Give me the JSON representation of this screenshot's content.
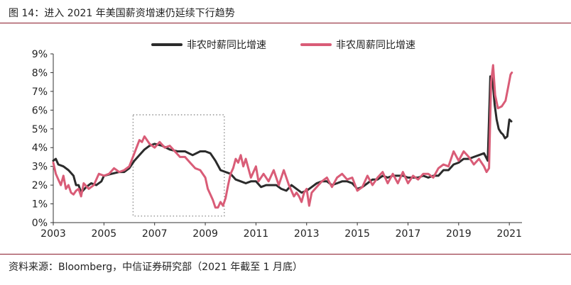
{
  "figure": {
    "title": "图 14：进入 2021 年美国薪资增速仍延续下行趋势",
    "source": "资料来源：Bloomberg，中信证券研究部（2021 年截至 1 月底）"
  },
  "chart_data": {
    "type": "line",
    "title": "",
    "xlabel": "",
    "ylabel": "",
    "xlim": [
      2003,
      2021.5
    ],
    "ylim": [
      0,
      9
    ],
    "x_ticks": [
      "2003",
      "2005",
      "2007",
      "2009",
      "2011",
      "2013",
      "2015",
      "2017",
      "2019",
      "2021"
    ],
    "y_ticks": [
      "0%",
      "1%",
      "2%",
      "3%",
      "4%",
      "5%",
      "6%",
      "7%",
      "8%",
      "9%"
    ],
    "grid": false,
    "legend_position": "top-center",
    "annotation_box": {
      "x": [
        2006.15,
        2009.75
      ],
      "y": [
        0.35,
        5.75
      ],
      "style": "dotted"
    },
    "series": [
      {
        "name": "非农时薪同比增速",
        "color": "#2b2b2b",
        "points": [
          [
            2003.0,
            3.3
          ],
          [
            2003.1,
            3.4
          ],
          [
            2003.2,
            3.1
          ],
          [
            2003.4,
            3.0
          ],
          [
            2003.6,
            2.8
          ],
          [
            2003.8,
            2.5
          ],
          [
            2003.9,
            2.0
          ],
          [
            2004.0,
            2.0
          ],
          [
            2004.1,
            1.6
          ],
          [
            2004.3,
            1.9
          ],
          [
            2004.5,
            2.1
          ],
          [
            2004.7,
            2.0
          ],
          [
            2004.9,
            2.2
          ],
          [
            2005.0,
            2.5
          ],
          [
            2005.3,
            2.6
          ],
          [
            2005.6,
            2.7
          ],
          [
            2005.8,
            2.7
          ],
          [
            2006.0,
            2.9
          ],
          [
            2006.2,
            3.3
          ],
          [
            2006.4,
            3.6
          ],
          [
            2006.6,
            3.9
          ],
          [
            2006.8,
            4.1
          ],
          [
            2007.0,
            4.2
          ],
          [
            2007.3,
            4.1
          ],
          [
            2007.6,
            3.9
          ],
          [
            2007.9,
            3.8
          ],
          [
            2008.2,
            3.8
          ],
          [
            2008.5,
            3.6
          ],
          [
            2008.8,
            3.8
          ],
          [
            2009.0,
            3.8
          ],
          [
            2009.2,
            3.7
          ],
          [
            2009.4,
            3.3
          ],
          [
            2009.6,
            2.8
          ],
          [
            2009.8,
            2.7
          ],
          [
            2010.0,
            2.6
          ],
          [
            2010.2,
            2.3
          ],
          [
            2010.4,
            2.2
          ],
          [
            2010.6,
            2.1
          ],
          [
            2010.8,
            2.2
          ],
          [
            2011.0,
            2.2
          ],
          [
            2011.2,
            1.9
          ],
          [
            2011.4,
            2.0
          ],
          [
            2011.6,
            2.0
          ],
          [
            2011.8,
            2.0
          ],
          [
            2012.0,
            1.8
          ],
          [
            2012.2,
            1.7
          ],
          [
            2012.4,
            2.0
          ],
          [
            2012.6,
            1.8
          ],
          [
            2012.8,
            1.6
          ],
          [
            2013.0,
            1.7
          ],
          [
            2013.2,
            1.9
          ],
          [
            2013.4,
            2.1
          ],
          [
            2013.6,
            2.2
          ],
          [
            2013.8,
            2.2
          ],
          [
            2014.0,
            2.0
          ],
          [
            2014.2,
            2.1
          ],
          [
            2014.4,
            2.2
          ],
          [
            2014.6,
            2.2
          ],
          [
            2014.8,
            2.1
          ],
          [
            2015.0,
            1.8
          ],
          [
            2015.2,
            1.9
          ],
          [
            2015.4,
            2.1
          ],
          [
            2015.6,
            2.3
          ],
          [
            2015.8,
            2.3
          ],
          [
            2016.0,
            2.5
          ],
          [
            2016.2,
            2.4
          ],
          [
            2016.4,
            2.5
          ],
          [
            2016.6,
            2.5
          ],
          [
            2016.8,
            2.5
          ],
          [
            2017.0,
            2.4
          ],
          [
            2017.2,
            2.4
          ],
          [
            2017.4,
            2.4
          ],
          [
            2017.6,
            2.5
          ],
          [
            2017.8,
            2.4
          ],
          [
            2018.0,
            2.5
          ],
          [
            2018.2,
            2.5
          ],
          [
            2018.4,
            2.8
          ],
          [
            2018.6,
            2.8
          ],
          [
            2018.8,
            3.1
          ],
          [
            2019.0,
            3.2
          ],
          [
            2019.2,
            3.4
          ],
          [
            2019.4,
            3.4
          ],
          [
            2019.6,
            3.5
          ],
          [
            2019.8,
            3.6
          ],
          [
            2020.0,
            3.7
          ],
          [
            2020.15,
            3.3
          ],
          [
            2020.25,
            7.8
          ],
          [
            2020.33,
            7.7
          ],
          [
            2020.42,
            6.3
          ],
          [
            2020.5,
            5.5
          ],
          [
            2020.58,
            5.0
          ],
          [
            2020.67,
            4.8
          ],
          [
            2020.75,
            4.7
          ],
          [
            2020.83,
            4.5
          ],
          [
            2020.92,
            4.6
          ],
          [
            2021.0,
            5.5
          ],
          [
            2021.08,
            5.4
          ]
        ]
      },
      {
        "name": "非农周薪同比增速",
        "color": "#d95c77",
        "points": [
          [
            2003.0,
            3.2
          ],
          [
            2003.1,
            2.6
          ],
          [
            2003.2,
            2.3
          ],
          [
            2003.3,
            2.0
          ],
          [
            2003.4,
            2.5
          ],
          [
            2003.5,
            1.8
          ],
          [
            2003.6,
            2.0
          ],
          [
            2003.7,
            1.6
          ],
          [
            2003.8,
            1.5
          ],
          [
            2003.9,
            1.7
          ],
          [
            2004.0,
            1.8
          ],
          [
            2004.1,
            1.4
          ],
          [
            2004.2,
            2.1
          ],
          [
            2004.4,
            1.8
          ],
          [
            2004.6,
            2.0
          ],
          [
            2004.8,
            2.6
          ],
          [
            2005.0,
            2.5
          ],
          [
            2005.2,
            2.6
          ],
          [
            2005.4,
            2.9
          ],
          [
            2005.6,
            2.7
          ],
          [
            2005.8,
            2.8
          ],
          [
            2006.0,
            3.0
          ],
          [
            2006.2,
            3.7
          ],
          [
            2006.4,
            4.4
          ],
          [
            2006.5,
            4.3
          ],
          [
            2006.6,
            4.6
          ],
          [
            2006.8,
            4.2
          ],
          [
            2007.0,
            4.0
          ],
          [
            2007.2,
            4.3
          ],
          [
            2007.4,
            4.0
          ],
          [
            2007.6,
            4.1
          ],
          [
            2007.8,
            3.8
          ],
          [
            2008.0,
            3.5
          ],
          [
            2008.2,
            3.5
          ],
          [
            2008.4,
            3.2
          ],
          [
            2008.6,
            2.9
          ],
          [
            2008.8,
            2.8
          ],
          [
            2009.0,
            2.4
          ],
          [
            2009.1,
            1.8
          ],
          [
            2009.2,
            1.5
          ],
          [
            2009.3,
            1.2
          ],
          [
            2009.4,
            0.8
          ],
          [
            2009.5,
            0.8
          ],
          [
            2009.6,
            1.1
          ],
          [
            2009.7,
            0.9
          ],
          [
            2009.8,
            1.3
          ],
          [
            2009.9,
            2.0
          ],
          [
            2010.0,
            2.6
          ],
          [
            2010.1,
            2.9
          ],
          [
            2010.2,
            3.4
          ],
          [
            2010.3,
            3.2
          ],
          [
            2010.4,
            3.6
          ],
          [
            2010.5,
            3.0
          ],
          [
            2010.6,
            3.4
          ],
          [
            2010.8,
            2.4
          ],
          [
            2011.0,
            3.0
          ],
          [
            2011.1,
            2.2
          ],
          [
            2011.3,
            2.6
          ],
          [
            2011.5,
            2.2
          ],
          [
            2011.7,
            2.8
          ],
          [
            2011.9,
            2.0
          ],
          [
            2012.1,
            2.8
          ],
          [
            2012.3,
            2.0
          ],
          [
            2012.5,
            1.4
          ],
          [
            2012.6,
            1.6
          ],
          [
            2012.7,
            1.4
          ],
          [
            2012.8,
            1.1
          ],
          [
            2012.9,
            1.6
          ],
          [
            2013.0,
            1.8
          ],
          [
            2013.1,
            0.9
          ],
          [
            2013.2,
            1.6
          ],
          [
            2013.4,
            1.9
          ],
          [
            2013.6,
            2.2
          ],
          [
            2013.8,
            2.4
          ],
          [
            2014.0,
            1.9
          ],
          [
            2014.2,
            2.4
          ],
          [
            2014.4,
            2.6
          ],
          [
            2014.6,
            2.3
          ],
          [
            2014.8,
            2.4
          ],
          [
            2015.0,
            1.7
          ],
          [
            2015.2,
            1.9
          ],
          [
            2015.4,
            2.5
          ],
          [
            2015.6,
            2.0
          ],
          [
            2015.8,
            2.4
          ],
          [
            2016.0,
            2.7
          ],
          [
            2016.2,
            2.1
          ],
          [
            2016.4,
            2.6
          ],
          [
            2016.6,
            2.1
          ],
          [
            2016.8,
            2.7
          ],
          [
            2017.0,
            2.1
          ],
          [
            2017.2,
            2.5
          ],
          [
            2017.4,
            2.3
          ],
          [
            2017.6,
            2.6
          ],
          [
            2017.8,
            2.6
          ],
          [
            2018.0,
            2.4
          ],
          [
            2018.2,
            2.9
          ],
          [
            2018.4,
            3.1
          ],
          [
            2018.6,
            3.0
          ],
          [
            2018.8,
            3.8
          ],
          [
            2019.0,
            3.3
          ],
          [
            2019.2,
            3.8
          ],
          [
            2019.4,
            3.5
          ],
          [
            2019.6,
            3.1
          ],
          [
            2019.8,
            3.4
          ],
          [
            2020.0,
            3.0
          ],
          [
            2020.1,
            2.7
          ],
          [
            2020.2,
            2.9
          ],
          [
            2020.28,
            7.5
          ],
          [
            2020.36,
            8.4
          ],
          [
            2020.44,
            6.8
          ],
          [
            2020.55,
            6.1
          ],
          [
            2020.7,
            6.2
          ],
          [
            2020.85,
            6.5
          ],
          [
            2020.95,
            7.2
          ],
          [
            2021.05,
            7.9
          ],
          [
            2021.1,
            8.0
          ]
        ]
      }
    ]
  }
}
